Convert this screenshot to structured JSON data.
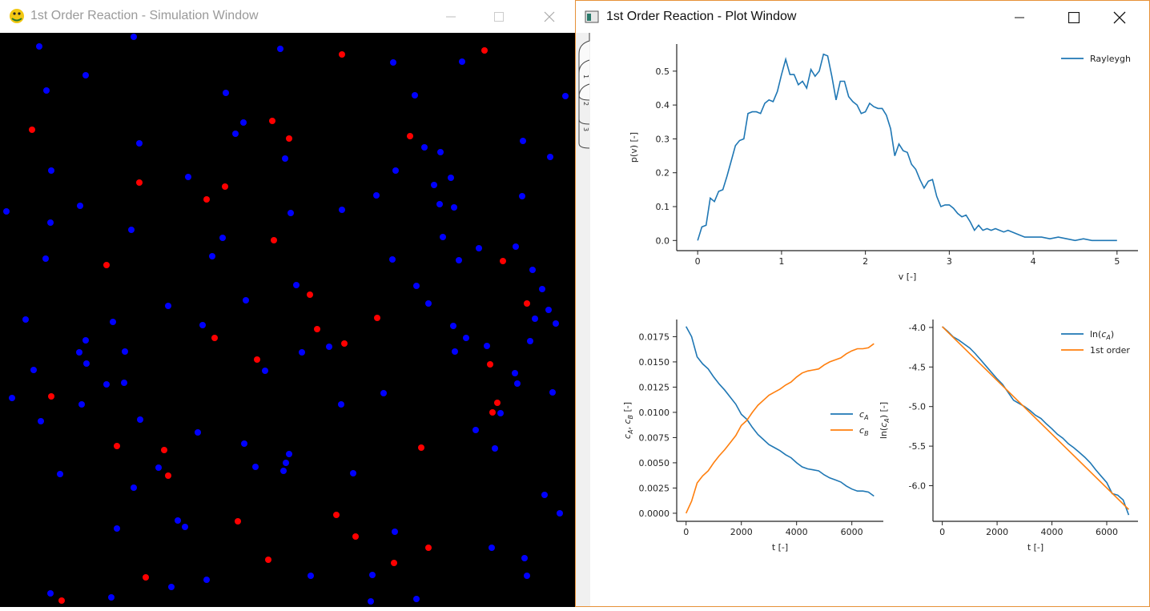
{
  "sim_window": {
    "title": "1st Order Reaction - Simulation Window",
    "colors": {
      "background": "#000000",
      "species_a": "#0000ff",
      "species_b": "#ff0000"
    },
    "particles_a": [
      [
        49,
        58
      ],
      [
        167,
        46
      ],
      [
        350,
        61
      ],
      [
        107,
        94
      ],
      [
        58,
        113
      ],
      [
        491,
        78
      ],
      [
        577,
        77
      ],
      [
        706,
        120
      ],
      [
        518,
        119
      ],
      [
        282,
        116
      ],
      [
        174,
        179
      ],
      [
        304,
        153
      ],
      [
        294,
        167
      ],
      [
        530,
        184
      ],
      [
        550,
        190
      ],
      [
        653,
        176
      ],
      [
        687,
        196
      ],
      [
        356,
        198
      ],
      [
        64,
        213
      ],
      [
        494,
        213
      ],
      [
        542,
        231
      ],
      [
        563,
        222
      ],
      [
        235,
        221
      ],
      [
        470,
        244
      ],
      [
        427,
        262
      ],
      [
        8,
        264
      ],
      [
        100,
        257
      ],
      [
        549,
        255
      ],
      [
        567,
        259
      ],
      [
        363,
        266
      ],
      [
        652,
        245
      ],
      [
        63,
        278
      ],
      [
        164,
        287
      ],
      [
        278,
        297
      ],
      [
        553,
        296
      ],
      [
        57,
        323
      ],
      [
        265,
        320
      ],
      [
        490,
        324
      ],
      [
        573,
        325
      ],
      [
        598,
        310
      ],
      [
        644,
        308
      ],
      [
        665,
        337
      ],
      [
        677,
        361
      ],
      [
        370,
        356
      ],
      [
        520,
        357
      ],
      [
        307,
        375
      ],
      [
        535,
        379
      ],
      [
        210,
        382
      ],
      [
        685,
        387
      ],
      [
        668,
        398
      ],
      [
        694,
        404
      ],
      [
        32,
        399
      ],
      [
        141,
        402
      ],
      [
        253,
        406
      ],
      [
        566,
        407
      ],
      [
        107,
        425
      ],
      [
        582,
        422
      ],
      [
        156,
        439
      ],
      [
        99,
        440
      ],
      [
        377,
        440
      ],
      [
        411,
        433
      ],
      [
        568,
        439
      ],
      [
        608,
        432
      ],
      [
        662,
        426
      ],
      [
        108,
        454
      ],
      [
        42,
        462
      ],
      [
        331,
        463
      ],
      [
        643,
        466
      ],
      [
        133,
        480
      ],
      [
        155,
        478
      ],
      [
        426,
        505
      ],
      [
        646,
        479
      ],
      [
        690,
        490
      ],
      [
        15,
        497
      ],
      [
        102,
        505
      ],
      [
        479,
        491
      ],
      [
        625,
        516
      ],
      [
        175,
        524
      ],
      [
        51,
        526
      ],
      [
        247,
        540
      ],
      [
        594,
        537
      ],
      [
        305,
        554
      ],
      [
        361,
        567
      ],
      [
        618,
        560
      ],
      [
        357,
        578
      ],
      [
        319,
        583
      ],
      [
        198,
        584
      ],
      [
        354,
        588
      ],
      [
        441,
        591
      ],
      [
        75,
        592
      ],
      [
        167,
        609
      ],
      [
        680,
        618
      ],
      [
        699,
        641
      ],
      [
        146,
        660
      ],
      [
        222,
        650
      ],
      [
        231,
        658
      ],
      [
        493,
        664
      ],
      [
        614,
        684
      ],
      [
        655,
        697
      ],
      [
        388,
        719
      ],
      [
        465,
        718
      ],
      [
        658,
        719
      ],
      [
        258,
        724
      ],
      [
        214,
        733
      ],
      [
        63,
        741
      ],
      [
        139,
        746
      ],
      [
        463,
        751
      ],
      [
        520,
        748
      ]
    ],
    "particles_b": [
      [
        427,
        68
      ],
      [
        605,
        63
      ],
      [
        40,
        162
      ],
      [
        340,
        151
      ],
      [
        361,
        173
      ],
      [
        512,
        170
      ],
      [
        174,
        228
      ],
      [
        258,
        249
      ],
      [
        281,
        233
      ],
      [
        342,
        300
      ],
      [
        133,
        331
      ],
      [
        628,
        326
      ],
      [
        387,
        368
      ],
      [
        658,
        379
      ],
      [
        471,
        397
      ],
      [
        396,
        411
      ],
      [
        268,
        422
      ],
      [
        430,
        429
      ],
      [
        321,
        449
      ],
      [
        612,
        455
      ],
      [
        64,
        495
      ],
      [
        621,
        503
      ],
      [
        615,
        515
      ],
      [
        146,
        557
      ],
      [
        205,
        562
      ],
      [
        526,
        559
      ],
      [
        210,
        594
      ],
      [
        420,
        643
      ],
      [
        297,
        651
      ],
      [
        444,
        670
      ],
      [
        535,
        684
      ],
      [
        335,
        699
      ],
      [
        492,
        703
      ],
      [
        182,
        721
      ],
      [
        77,
        750
      ]
    ]
  },
  "plot_window": {
    "title": "1st Order Reaction - Plot Window",
    "tab_labels": [
      "1",
      "2",
      "3"
    ],
    "colors": {
      "blue": "#1f77b4",
      "orange": "#ff7f0e"
    }
  },
  "chart_data": [
    {
      "type": "line",
      "title": "",
      "xlabel": "v [-]",
      "ylabel": "p(v) [-]",
      "xlim": [
        -0.25,
        5.25
      ],
      "ylim": [
        -0.03,
        0.58
      ],
      "xticks": [
        0,
        1,
        2,
        3,
        4,
        5
      ],
      "yticks": [
        0.0,
        0.1,
        0.2,
        0.3,
        0.4,
        0.5
      ],
      "legend_position": "top-right",
      "series": [
        {
          "name": "Rayleygh",
          "color": "#1f77b4",
          "x": [
            0,
            0.05,
            0.1,
            0.15,
            0.2,
            0.25,
            0.3,
            0.35,
            0.4,
            0.45,
            0.5,
            0.55,
            0.6,
            0.65,
            0.7,
            0.75,
            0.8,
            0.85,
            0.9,
            0.95,
            1.0,
            1.05,
            1.1,
            1.15,
            1.2,
            1.25,
            1.3,
            1.35,
            1.4,
            1.45,
            1.5,
            1.55,
            1.6,
            1.65,
            1.7,
            1.75,
            1.8,
            1.85,
            1.9,
            1.95,
            2.0,
            2.05,
            2.1,
            2.15,
            2.2,
            2.25,
            2.3,
            2.35,
            2.4,
            2.45,
            2.5,
            2.55,
            2.6,
            2.65,
            2.7,
            2.75,
            2.8,
            2.85,
            2.9,
            2.95,
            3.0,
            3.05,
            3.1,
            3.15,
            3.2,
            3.25,
            3.3,
            3.35,
            3.4,
            3.45,
            3.5,
            3.55,
            3.6,
            3.65,
            3.7,
            3.75,
            3.8,
            3.85,
            3.9,
            3.95,
            4.0,
            4.1,
            4.2,
            4.3,
            4.4,
            4.5,
            4.6,
            4.7,
            4.8,
            4.9,
            5.0
          ],
          "y": [
            0.0,
            0.04,
            0.045,
            0.125,
            0.115,
            0.145,
            0.15,
            0.19,
            0.235,
            0.28,
            0.295,
            0.3,
            0.375,
            0.38,
            0.38,
            0.375,
            0.405,
            0.415,
            0.41,
            0.44,
            0.49,
            0.535,
            0.49,
            0.49,
            0.46,
            0.47,
            0.45,
            0.505,
            0.485,
            0.5,
            0.55,
            0.545,
            0.485,
            0.415,
            0.47,
            0.47,
            0.425,
            0.41,
            0.4,
            0.375,
            0.38,
            0.405,
            0.395,
            0.39,
            0.39,
            0.37,
            0.33,
            0.25,
            0.285,
            0.265,
            0.26,
            0.225,
            0.21,
            0.18,
            0.155,
            0.175,
            0.18,
            0.13,
            0.1,
            0.105,
            0.105,
            0.095,
            0.08,
            0.07,
            0.075,
            0.055,
            0.03,
            0.045,
            0.03,
            0.035,
            0.03,
            0.035,
            0.03,
            0.025,
            0.03,
            0.025,
            0.02,
            0.015,
            0.01,
            0.01,
            0.01,
            0.01,
            0.005,
            0.01,
            0.005,
            0.0,
            0.005,
            0.0,
            0.0,
            0.0,
            0.0
          ]
        }
      ]
    },
    {
      "type": "line",
      "title": "",
      "xlabel": "t [-]",
      "ylabel": "cA, cB [-]",
      "xlim": [
        -340,
        7140
      ],
      "ylim": [
        -0.0008,
        0.0192
      ],
      "xticks": [
        0,
        2000,
        4000,
        6000
      ],
      "yticks": [
        0.0,
        0.0025,
        0.005,
        0.0075,
        0.01,
        0.0125,
        0.015,
        0.0175
      ],
      "ytick_labels": [
        "0.0000",
        "0.0025",
        "0.0050",
        "0.0075",
        "0.0100",
        "0.0125",
        "0.0150",
        "0.0175"
      ],
      "legend_position": "center-right",
      "series": [
        {
          "name": "c_A",
          "label_main": "c",
          "label_sub": "A",
          "color": "#1f77b4",
          "x": [
            0,
            200,
            400,
            600,
            800,
            1000,
            1200,
            1400,
            1600,
            1800,
            2000,
            2200,
            2400,
            2600,
            2800,
            3000,
            3200,
            3400,
            3600,
            3800,
            4000,
            4200,
            4400,
            4600,
            4800,
            5000,
            5200,
            5400,
            5600,
            5800,
            6000,
            6200,
            6400,
            6600,
            6800
          ],
          "y": [
            0.0185,
            0.0175,
            0.0155,
            0.0148,
            0.0143,
            0.0135,
            0.0128,
            0.0122,
            0.0115,
            0.0108,
            0.0098,
            0.0093,
            0.0085,
            0.0078,
            0.0073,
            0.0068,
            0.0065,
            0.0062,
            0.0058,
            0.0055,
            0.005,
            0.0046,
            0.0044,
            0.0043,
            0.0042,
            0.0038,
            0.0035,
            0.0033,
            0.0031,
            0.0027,
            0.0024,
            0.0022,
            0.0022,
            0.0021,
            0.0017
          ]
        },
        {
          "name": "c_B",
          "label_main": "c",
          "label_sub": "B",
          "color": "#ff7f0e",
          "x": [
            0,
            200,
            400,
            600,
            800,
            1000,
            1200,
            1400,
            1600,
            1800,
            2000,
            2200,
            2400,
            2600,
            2800,
            3000,
            3200,
            3400,
            3600,
            3800,
            4000,
            4200,
            4400,
            4600,
            4800,
            5000,
            5200,
            5400,
            5600,
            5800,
            6000,
            6200,
            6400,
            6600,
            6800
          ],
          "y": [
            0.0,
            0.0012,
            0.003,
            0.0037,
            0.0042,
            0.005,
            0.0057,
            0.0063,
            0.007,
            0.0077,
            0.0087,
            0.0092,
            0.01,
            0.0107,
            0.0112,
            0.0117,
            0.012,
            0.0123,
            0.0127,
            0.013,
            0.0135,
            0.0139,
            0.0141,
            0.0142,
            0.0143,
            0.0147,
            0.015,
            0.0152,
            0.0154,
            0.0158,
            0.0161,
            0.0163,
            0.0163,
            0.0164,
            0.0168
          ]
        }
      ]
    },
    {
      "type": "line",
      "title": "",
      "xlabel": "t [-]",
      "ylabel": "ln(cA) [-]",
      "xlim": [
        -340,
        7140
      ],
      "ylim": [
        -6.45,
        -3.9
      ],
      "xticks": [
        0,
        2000,
        4000,
        6000
      ],
      "yticks": [
        -6.0,
        -5.5,
        -5.0,
        -4.5,
        -4.0
      ],
      "legend_position": "top-right",
      "series": [
        {
          "name": "ln(c_A)",
          "label_pre": "ln(",
          "label_main": "c",
          "label_sub": "A",
          "label_post": ")",
          "color": "#1f77b4",
          "x": [
            0,
            200,
            400,
            600,
            800,
            1000,
            1200,
            1400,
            1600,
            1800,
            2000,
            2200,
            2400,
            2600,
            2800,
            3000,
            3200,
            3400,
            3600,
            3800,
            4000,
            4200,
            4400,
            4600,
            4800,
            5000,
            5200,
            5400,
            5600,
            5800,
            6000,
            6200,
            6400,
            6600,
            6800
          ],
          "y": [
            -3.99,
            -4.05,
            -4.12,
            -4.16,
            -4.21,
            -4.26,
            -4.33,
            -4.41,
            -4.49,
            -4.57,
            -4.65,
            -4.72,
            -4.82,
            -4.92,
            -4.96,
            -5.0,
            -5.05,
            -5.11,
            -5.15,
            -5.22,
            -5.28,
            -5.35,
            -5.4,
            -5.47,
            -5.52,
            -5.58,
            -5.64,
            -5.71,
            -5.8,
            -5.88,
            -5.96,
            -6.1,
            -6.12,
            -6.18,
            -6.37
          ]
        },
        {
          "name": "1st order",
          "color": "#ff7f0e",
          "x": [
            0,
            6800
          ],
          "y": [
            -3.99,
            -6.3
          ]
        }
      ]
    }
  ]
}
